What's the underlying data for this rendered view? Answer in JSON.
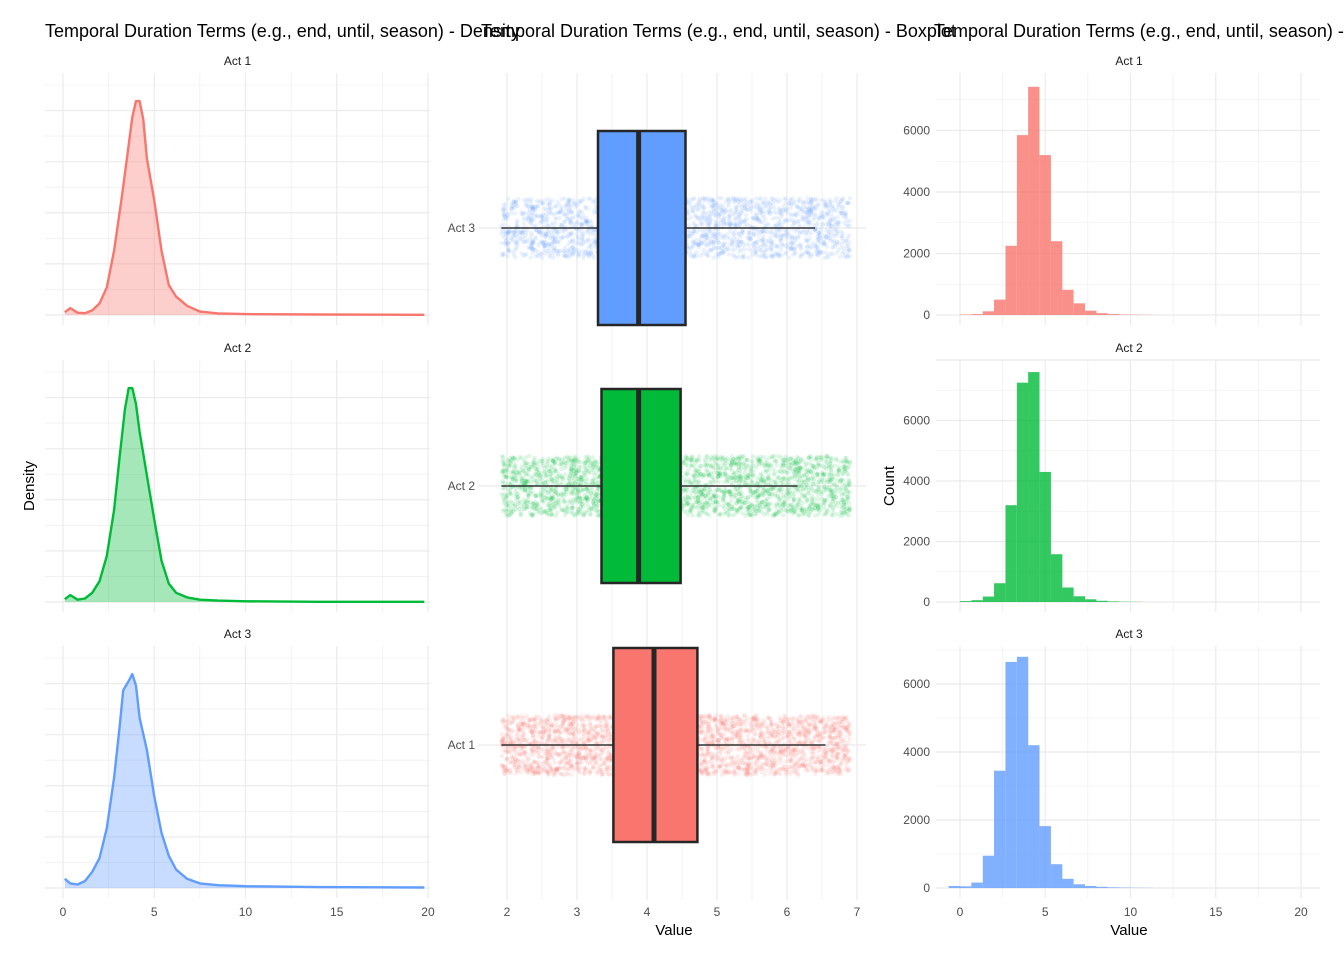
{
  "chart_data": [
    {
      "type": "area",
      "title": "Temporal Duration Terms (e.g., end, until, season) - Density",
      "xlabel": "",
      "ylabel": "Density",
      "xlim": [
        0,
        20
      ],
      "x_ticks": [
        0,
        5,
        10,
        15,
        20
      ],
      "y_tick_labels": "hidden",
      "grid": true,
      "legend": "none",
      "panels": [
        {
          "label": "Act 1",
          "color": "#F8766D",
          "points": [
            [
              0.1,
              0.012
            ],
            [
              0.4,
              0.03
            ],
            [
              0.8,
              0.01
            ],
            [
              1.2,
              0.008
            ],
            [
              1.6,
              0.02
            ],
            [
              2.0,
              0.05
            ],
            [
              2.4,
              0.12
            ],
            [
              2.8,
              0.28
            ],
            [
              3.2,
              0.5
            ],
            [
              3.5,
              0.68
            ],
            [
              3.8,
              0.86
            ],
            [
              4.0,
              0.93
            ],
            [
              4.2,
              0.93
            ],
            [
              4.4,
              0.85
            ],
            [
              4.6,
              0.68
            ],
            [
              5.0,
              0.5
            ],
            [
              5.4,
              0.28
            ],
            [
              5.8,
              0.13
            ],
            [
              6.2,
              0.08
            ],
            [
              6.8,
              0.04
            ],
            [
              7.5,
              0.015
            ],
            [
              8.5,
              0.007
            ],
            [
              10,
              0.004
            ],
            [
              14,
              0.002
            ],
            [
              19.8,
              0.001
            ]
          ]
        },
        {
          "label": "Act 2",
          "color": "#00BA38",
          "points": [
            [
              0.1,
              0.012
            ],
            [
              0.4,
              0.03
            ],
            [
              0.8,
              0.01
            ],
            [
              1.2,
              0.015
            ],
            [
              1.6,
              0.04
            ],
            [
              2.0,
              0.09
            ],
            [
              2.4,
              0.2
            ],
            [
              2.8,
              0.4
            ],
            [
              3.1,
              0.63
            ],
            [
              3.4,
              0.84
            ],
            [
              3.6,
              0.93
            ],
            [
              3.8,
              0.93
            ],
            [
              4.0,
              0.86
            ],
            [
              4.2,
              0.74
            ],
            [
              4.6,
              0.55
            ],
            [
              5.0,
              0.36
            ],
            [
              5.4,
              0.18
            ],
            [
              5.8,
              0.08
            ],
            [
              6.2,
              0.04
            ],
            [
              6.8,
              0.02
            ],
            [
              7.5,
              0.01
            ],
            [
              8.5,
              0.006
            ],
            [
              10,
              0.003
            ],
            [
              14,
              0.001
            ],
            [
              19.8,
              0.001
            ]
          ]
        },
        {
          "label": "Act 3",
          "color": "#619CFF",
          "points": [
            [
              0.1,
              0.04
            ],
            [
              0.4,
              0.02
            ],
            [
              0.8,
              0.015
            ],
            [
              1.2,
              0.03
            ],
            [
              1.6,
              0.07
            ],
            [
              2.0,
              0.13
            ],
            [
              2.4,
              0.26
            ],
            [
              2.8,
              0.48
            ],
            [
              3.1,
              0.7
            ],
            [
              3.3,
              0.86
            ],
            [
              3.6,
              0.9
            ],
            [
              3.8,
              0.93
            ],
            [
              4.0,
              0.88
            ],
            [
              4.2,
              0.74
            ],
            [
              4.6,
              0.6
            ],
            [
              5.0,
              0.4
            ],
            [
              5.4,
              0.24
            ],
            [
              5.8,
              0.14
            ],
            [
              6.2,
              0.08
            ],
            [
              6.8,
              0.04
            ],
            [
              7.5,
              0.02
            ],
            [
              8.5,
              0.012
            ],
            [
              10,
              0.008
            ],
            [
              14,
              0.004
            ],
            [
              19.8,
              0.002
            ]
          ]
        }
      ]
    },
    {
      "type": "boxplot",
      "title": "Temporal Duration Terms (e.g., end, until, season) - Boxplot",
      "xlabel": "Value",
      "ylabel": "",
      "xlim": [
        1.85,
        7.15
      ],
      "x_ticks": [
        2,
        3,
        4,
        5,
        6,
        7
      ],
      "grid": true,
      "legend": "none",
      "categories": [
        "Act 3",
        "Act 2",
        "Act 1"
      ],
      "boxes": [
        {
          "label": "Act 3",
          "color": "#619CFF",
          "q1": 3.3,
          "median": 3.88,
          "q3": 4.55,
          "whisker_low": 1.92,
          "whisker_high": 6.4,
          "jitter_from": 1.92,
          "jitter_to": 6.9,
          "jitter_points": 2200
        },
        {
          "label": "Act 2",
          "color": "#00BA38",
          "q1": 3.35,
          "median": 3.88,
          "q3": 4.48,
          "whisker_low": 1.92,
          "whisker_high": 6.15,
          "jitter_from": 1.92,
          "jitter_to": 6.9,
          "jitter_points": 2600
        },
        {
          "label": "Act 1",
          "color": "#F8766D",
          "q1": 3.52,
          "median": 4.1,
          "q3": 4.72,
          "whisker_low": 1.92,
          "whisker_high": 6.55,
          "jitter_from": 1.92,
          "jitter_to": 6.9,
          "jitter_points": 2800
        }
      ]
    },
    {
      "type": "bar",
      "title": "Temporal Duration Terms (e.g., end, until, season) - Histogram",
      "xlabel": "Value",
      "ylabel": "Count",
      "xlim": [
        -1,
        21
      ],
      "x_ticks": [
        0,
        5,
        10,
        15,
        20
      ],
      "bin_width": 0.667,
      "grid": true,
      "legend": "none",
      "panels": [
        {
          "label": "Act 1",
          "color": "#F8766D",
          "y_ticks": [
            0,
            2000,
            4000,
            6000
          ],
          "ylim": [
            -350,
            7700
          ],
          "bins": [
            [
              0.33,
              15
            ],
            [
              1.0,
              30
            ],
            [
              1.67,
              120
            ],
            [
              2.33,
              500
            ],
            [
              3.0,
              2250
            ],
            [
              3.67,
              5850
            ],
            [
              4.33,
              7420
            ],
            [
              5.0,
              5200
            ],
            [
              5.67,
              2400
            ],
            [
              6.33,
              820
            ],
            [
              7.0,
              380
            ],
            [
              7.67,
              140
            ],
            [
              8.33,
              60
            ],
            [
              9.0,
              30
            ],
            [
              9.67,
              15
            ],
            [
              10.33,
              10
            ],
            [
              11.0,
              6
            ]
          ]
        },
        {
          "label": "Act 2",
          "color": "#00BA38",
          "y_ticks": [
            0,
            2000,
            4000,
            6000
          ],
          "ylim": [
            -400,
            8100
          ],
          "bins": [
            [
              0.33,
              30
            ],
            [
              1.0,
              60
            ],
            [
              1.67,
              180
            ],
            [
              2.33,
              620
            ],
            [
              3.0,
              3200
            ],
            [
              3.67,
              7250
            ],
            [
              4.33,
              7600
            ],
            [
              5.0,
              4300
            ],
            [
              5.67,
              1580
            ],
            [
              6.33,
              480
            ],
            [
              7.0,
              190
            ],
            [
              7.67,
              90
            ],
            [
              8.33,
              40
            ],
            [
              9.0,
              20
            ],
            [
              9.67,
              10
            ],
            [
              10.33,
              6
            ]
          ]
        },
        {
          "label": "Act 3",
          "color": "#619CFF",
          "y_ticks": [
            0,
            2000,
            4000,
            6000
          ],
          "ylim": [
            -350,
            7100
          ],
          "bins": [
            [
              -0.33,
              60
            ],
            [
              0.33,
              50
            ],
            [
              1.0,
              160
            ],
            [
              1.67,
              950
            ],
            [
              2.33,
              3450
            ],
            [
              3.0,
              6650
            ],
            [
              3.67,
              6800
            ],
            [
              4.33,
              4200
            ],
            [
              5.0,
              1820
            ],
            [
              5.67,
              700
            ],
            [
              6.33,
              270
            ],
            [
              7.0,
              110
            ],
            [
              7.67,
              60
            ],
            [
              8.33,
              35
            ],
            [
              9.0,
              20
            ],
            [
              9.67,
              12
            ],
            [
              10.33,
              8
            ],
            [
              11.0,
              5
            ]
          ]
        }
      ]
    }
  ]
}
